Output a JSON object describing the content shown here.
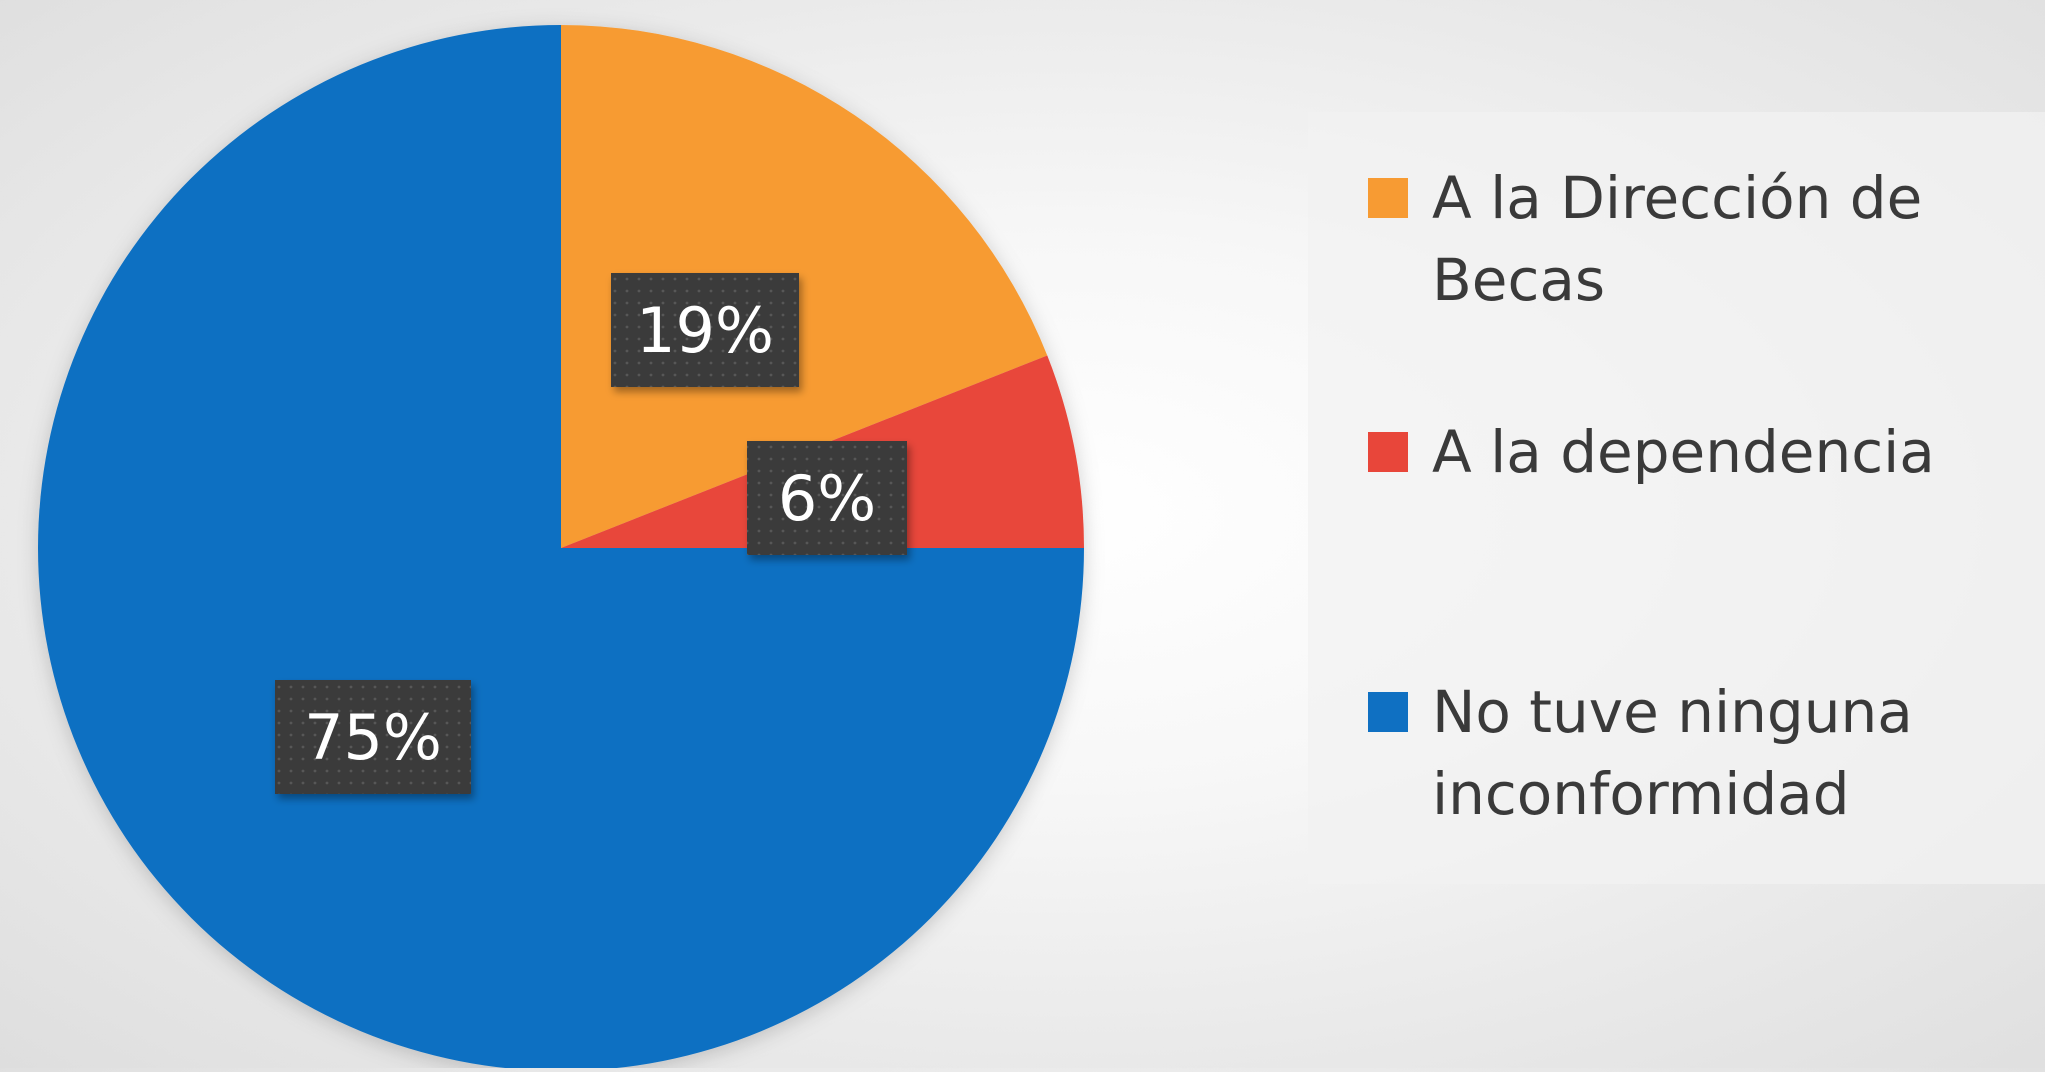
{
  "chart_data": {
    "type": "pie",
    "title": "",
    "legend_position": "right",
    "slices": [
      {
        "name": "A la Dirección de Becas",
        "legend_lines": [
          "A la Dirección de",
          "Becas"
        ],
        "value": 19,
        "label": "19%",
        "color": "#F79B33"
      },
      {
        "name": "A la dependencia",
        "legend_lines": [
          "A la dependencia"
        ],
        "value": 6,
        "label": "6%",
        "color": "#E8463A"
      },
      {
        "name": "No tuve ninguna inconformidad",
        "legend_lines": [
          "No tuve ninguna",
          "inconformidad"
        ],
        "value": 75,
        "label": "75%",
        "color": "#0F70C2"
      }
    ],
    "label_box_color": "#3b3b3b"
  }
}
